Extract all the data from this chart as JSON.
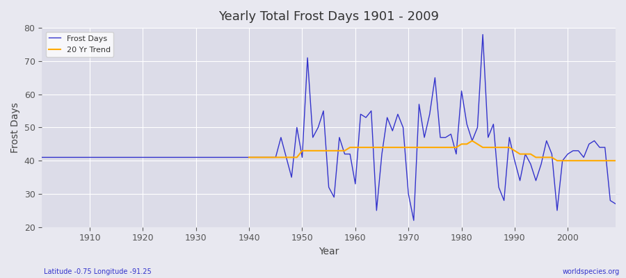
{
  "title": "Yearly Total Frost Days 1901 - 2009",
  "xlabel": "Year",
  "ylabel": "Frost Days",
  "subtitle": "Latitude -0.75 Longitude -91.25",
  "watermark": "worldspecies.org",
  "ylim": [
    20,
    80
  ],
  "xlim": [
    1901,
    2009
  ],
  "yticks": [
    20,
    30,
    40,
    50,
    60,
    70,
    80
  ],
  "xticks": [
    1910,
    1920,
    1930,
    1940,
    1950,
    1960,
    1970,
    1980,
    1990,
    2000
  ],
  "frost_color": "#3333cc",
  "trend_color": "#ffaa00",
  "bg_color": "#e8e8f0",
  "plot_bg": "#dcdce8",
  "legend_entries": [
    "Frost Days",
    "20 Yr Trend"
  ],
  "frost_years": [
    1901,
    1902,
    1903,
    1904,
    1905,
    1906,
    1907,
    1908,
    1909,
    1910,
    1911,
    1912,
    1913,
    1914,
    1915,
    1916,
    1917,
    1918,
    1919,
    1920,
    1921,
    1922,
    1923,
    1924,
    1925,
    1926,
    1927,
    1928,
    1929,
    1930,
    1931,
    1932,
    1933,
    1934,
    1935,
    1936,
    1937,
    1938,
    1939,
    1940,
    1941,
    1942,
    1943,
    1944,
    1945,
    1946,
    1947,
    1948,
    1949,
    1950,
    1951,
    1952,
    1953,
    1954,
    1955,
    1956,
    1957,
    1958,
    1959,
    1960,
    1961,
    1962,
    1963,
    1964,
    1965,
    1966,
    1967,
    1968,
    1969,
    1970,
    1971,
    1972,
    1973,
    1974,
    1975,
    1976,
    1977,
    1978,
    1979,
    1980,
    1981,
    1982,
    1983,
    1984,
    1985,
    1986,
    1987,
    1988,
    1989,
    1990,
    1991,
    1992,
    1993,
    1994,
    1995,
    1996,
    1997,
    1998,
    1999,
    2000,
    2001,
    2002,
    2003,
    2004,
    2005,
    2006,
    2007,
    2008,
    2009
  ],
  "frost_values": [
    41,
    41,
    41,
    41,
    41,
    41,
    41,
    41,
    41,
    41,
    41,
    41,
    41,
    41,
    41,
    41,
    41,
    41,
    41,
    41,
    41,
    41,
    41,
    41,
    41,
    41,
    41,
    41,
    41,
    41,
    41,
    41,
    41,
    41,
    41,
    41,
    41,
    41,
    41,
    41,
    41,
    41,
    41,
    41,
    41,
    47,
    41,
    35,
    50,
    41,
    71,
    47,
    50,
    55,
    32,
    29,
    47,
    42,
    42,
    33,
    54,
    53,
    55,
    25,
    42,
    53,
    49,
    54,
    50,
    30,
    22,
    57,
    47,
    54,
    65,
    47,
    47,
    48,
    42,
    61,
    51,
    46,
    50,
    78,
    47,
    51,
    32,
    28,
    47,
    40,
    34,
    42,
    39,
    34,
    39,
    46,
    42,
    25,
    40,
    42,
    43,
    43,
    41,
    45,
    46,
    44,
    44,
    28,
    27
  ],
  "trend_years": [
    1940,
    1941,
    1942,
    1943,
    1944,
    1945,
    1946,
    1947,
    1948,
    1949,
    1950,
    1951,
    1952,
    1953,
    1954,
    1955,
    1956,
    1957,
    1958,
    1959,
    1960,
    1961,
    1962,
    1963,
    1964,
    1965,
    1966,
    1967,
    1968,
    1969,
    1970,
    1971,
    1972,
    1973,
    1974,
    1975,
    1976,
    1977,
    1978,
    1979,
    1980,
    1981,
    1982,
    1983,
    1984,
    1985,
    1986,
    1987,
    1988,
    1989,
    1990,
    1991,
    1992,
    1993,
    1994,
    1995,
    1996,
    1997,
    1998,
    1999,
    2000,
    2001,
    2002,
    2003,
    2004,
    2005,
    2006,
    2007,
    2008,
    2009
  ],
  "trend_values": [
    41,
    41,
    41,
    41,
    41,
    41,
    41,
    41,
    41,
    41,
    43,
    43,
    43,
    43,
    43,
    43,
    43,
    43,
    43,
    44,
    44,
    44,
    44,
    44,
    44,
    44,
    44,
    44,
    44,
    44,
    44,
    44,
    44,
    44,
    44,
    44,
    44,
    44,
    44,
    44,
    45,
    45,
    46,
    45,
    44,
    44,
    44,
    44,
    44,
    44,
    43,
    42,
    42,
    42,
    41,
    41,
    41,
    41,
    40,
    40,
    40,
    40,
    40,
    40,
    40,
    40,
    40,
    40,
    40,
    40
  ]
}
